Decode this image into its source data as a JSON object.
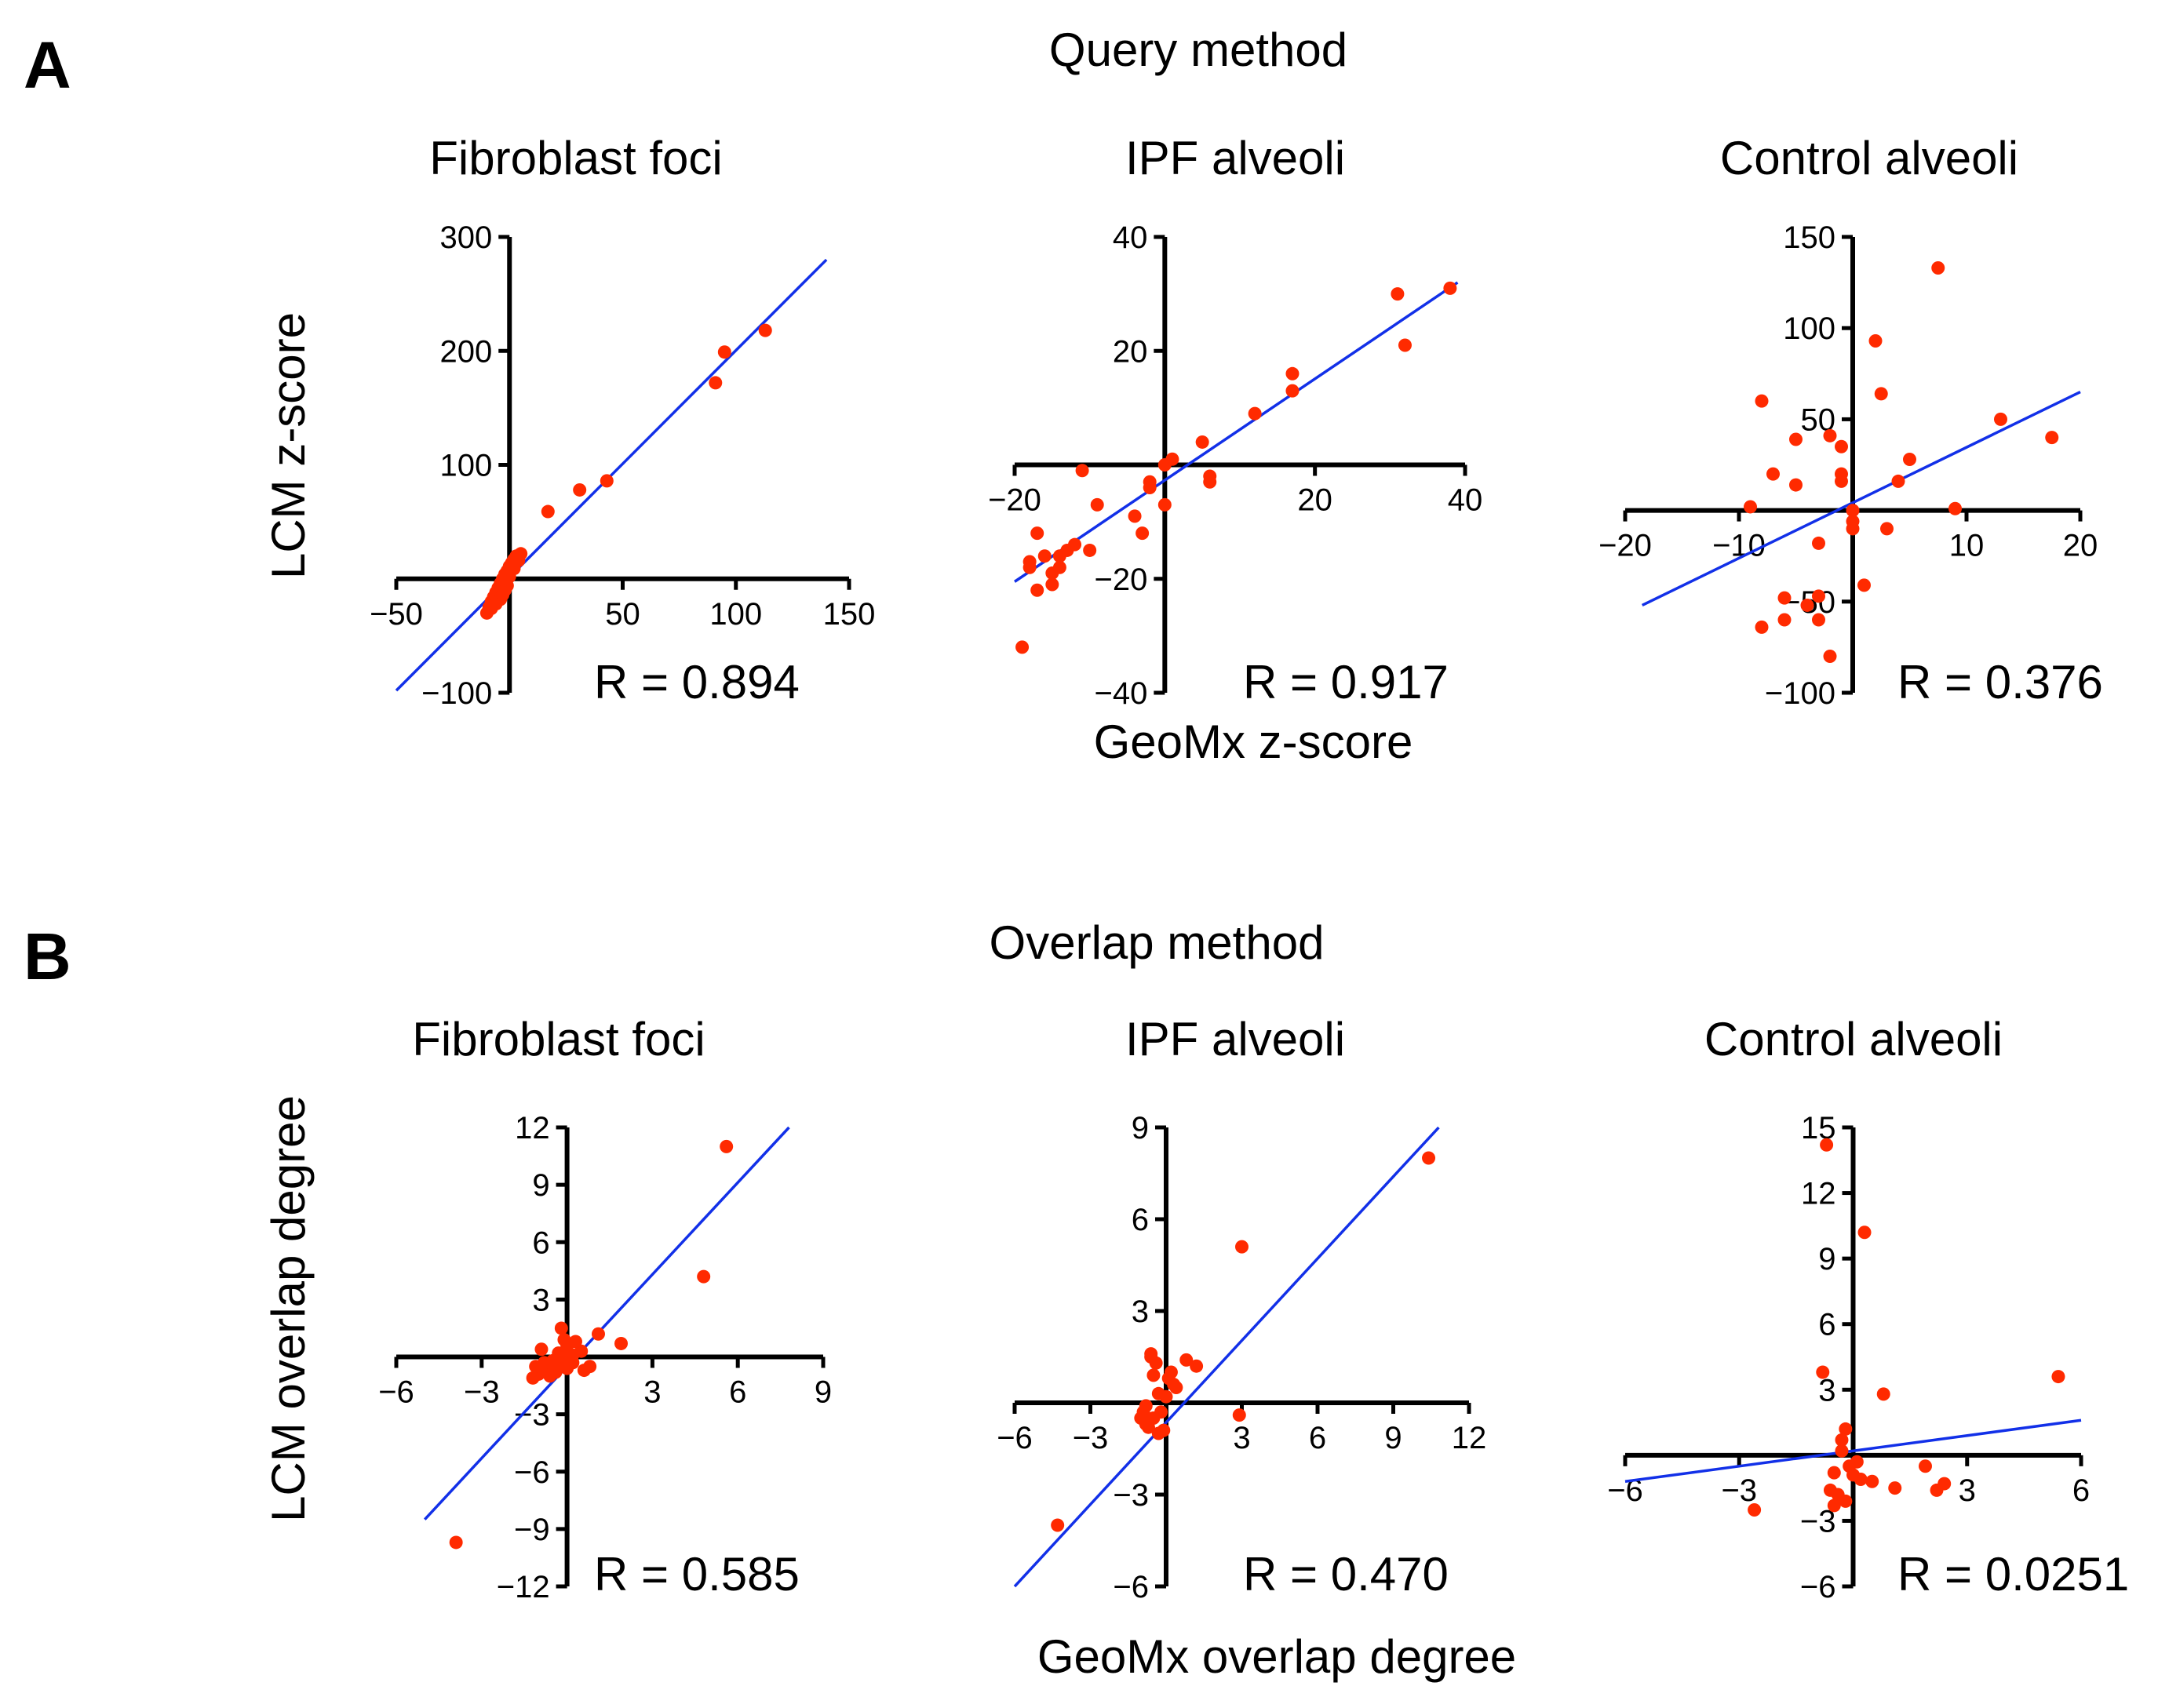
{
  "colors": {
    "points": "#ff2a00",
    "fit_line": "#1230e8",
    "axes": "#000000"
  },
  "figure": {
    "panel_a_letter": "A",
    "panel_b_letter": "B",
    "panel_a_heading": "Query method",
    "panel_b_heading": "Overlap method",
    "row_a_ylabel": "LCM z-score",
    "row_a_xlabel": "GeoMx z-score",
    "row_b_ylabel": "LCM overlap degree",
    "row_b_xlabel": "GeoMx overlap degree"
  },
  "chart_data": [
    {
      "type": "scatter",
      "panel": "A",
      "title": "Fibroblast foci",
      "r_label": "R = 0.894",
      "xlim": [
        -50,
        150
      ],
      "ylim": [
        -100,
        300
      ],
      "xticks": [
        -50,
        50,
        100,
        150
      ],
      "yticks": [
        -100,
        100,
        200,
        300
      ],
      "xtick_labels": [
        "−50",
        "50",
        "100",
        "150"
      ],
      "ytick_labels": [
        "−100",
        "100",
        "200",
        "300"
      ],
      "fit": [
        [
          -50,
          -98
        ],
        [
          140,
          280
        ]
      ],
      "x": [
        113,
        95,
        91,
        43,
        31,
        17,
        5,
        3,
        2,
        1,
        0,
        -1,
        -2,
        -3,
        -4,
        -5,
        -6,
        -7,
        -8,
        -9,
        -10,
        -2,
        -4,
        -6,
        -8,
        -3,
        -1,
        0,
        2,
        4
      ],
      "y": [
        218,
        199,
        172,
        86,
        78,
        59,
        22,
        20,
        17,
        14,
        11,
        7,
        4,
        0,
        -4,
        -8,
        -12,
        -16,
        -20,
        -25,
        -30,
        -10,
        -18,
        -22,
        -26,
        -14,
        -6,
        2,
        9,
        16
      ]
    },
    {
      "type": "scatter",
      "panel": "A",
      "title": "IPF alveoli",
      "r_label": "R = 0.917",
      "xlim": [
        -20,
        40
      ],
      "ylim": [
        -40,
        40
      ],
      "xticks": [
        -20,
        20,
        40
      ],
      "yticks": [
        -40,
        -20,
        20,
        40
      ],
      "xtick_labels": [
        "−20",
        "20",
        "40"
      ],
      "ytick_labels": [
        "−40",
        "−20",
        "20",
        "40"
      ],
      "fit": [
        [
          -20,
          -20.5
        ],
        [
          39,
          32
        ]
      ],
      "x": [
        38,
        31,
        32,
        17,
        17,
        12,
        5,
        6,
        6,
        1,
        0,
        0,
        -2,
        -2,
        -3,
        -4,
        -9,
        -10,
        -11,
        -12,
        -13,
        -14,
        -14,
        -15,
        -15,
        -16,
        -17,
        -17,
        -18,
        -18,
        -19
      ],
      "y": [
        31,
        30,
        21,
        16,
        13,
        9,
        4,
        -2,
        -3,
        1,
        -7,
        0,
        -3,
        -4,
        -12,
        -9,
        -7,
        -15,
        -1,
        -14,
        -15,
        -16,
        -18,
        -21,
        -19,
        -16,
        -22,
        -12,
        -17,
        -18,
        -32
      ]
    },
    {
      "type": "scatter",
      "panel": "A",
      "title": "Control alveoli",
      "r_label": "R = 0.376",
      "xlim": [
        -20,
        20
      ],
      "ylim": [
        -100,
        150
      ],
      "xticks": [
        -20,
        -10,
        10,
        20
      ],
      "yticks": [
        -100,
        -50,
        50,
        100,
        150
      ],
      "xtick_labels": [
        "−20",
        "−10",
        "10",
        "20"
      ],
      "ytick_labels": [
        "−100",
        "−50",
        "50",
        "100",
        "150"
      ],
      "fit": [
        [
          -18.5,
          -52
        ],
        [
          20,
          65
        ]
      ],
      "x": [
        7.5,
        17.5,
        13,
        2.5,
        5,
        4,
        3,
        2,
        9,
        1,
        0,
        0,
        0,
        -1,
        -1,
        -1,
        -2,
        -2,
        -3,
        -3,
        -3,
        -4,
        -5,
        -5,
        -6,
        -6,
        -7,
        -8,
        -8,
        -9
      ],
      "y": [
        133,
        40,
        50,
        64,
        28,
        16,
        -10,
        93,
        1,
        -41,
        -6,
        -10,
        0,
        16,
        35,
        20,
        41,
        -80,
        -18,
        -60,
        -47,
        -52,
        39,
        14,
        -60,
        -48,
        20,
        60,
        -64,
        2
      ]
    },
    {
      "type": "scatter",
      "panel": "B",
      "title": "Fibroblast foci",
      "r_label": "R = 0.585",
      "xlim": [
        -6,
        9
      ],
      "ylim": [
        -12,
        12
      ],
      "xticks": [
        -6,
        -3,
        3,
        6,
        9
      ],
      "yticks": [
        -12,
        -9,
        -6,
        -3,
        3,
        6,
        9,
        12
      ],
      "xtick_labels": [
        "−6",
        "−3",
        "3",
        "6",
        "9"
      ],
      "ytick_labels": [
        "−12",
        "−9",
        "−6",
        "−3",
        "3",
        "6",
        "9",
        "12"
      ],
      "fit": [
        [
          -5,
          -8.5
        ],
        [
          7.8,
          12
        ]
      ],
      "x": [
        5.6,
        4.8,
        1.9,
        1.1,
        0.5,
        0.3,
        0.2,
        0.1,
        0,
        0,
        -0.1,
        -0.2,
        -0.3,
        -0.4,
        -0.5,
        -0.6,
        -0.7,
        -0.8,
        -0.9,
        -1,
        -1.1,
        -1.2,
        -0.3,
        0.6,
        0.8,
        -0.5,
        -0.1,
        0.2,
        -3.9
      ],
      "y": [
        11,
        4.2,
        0.7,
        1.2,
        0.3,
        0.8,
        -0.3,
        0.1,
        0.6,
        -0.6,
        0.9,
        1.5,
        -0.2,
        -0.8,
        -0.4,
        -1,
        -0.6,
        -0.3,
        0.4,
        -0.9,
        -0.5,
        -1.1,
        0.2,
        -0.7,
        -0.5,
        -0.2,
        -0.4,
        0.1,
        -9.7
      ]
    },
    {
      "type": "scatter",
      "panel": "B",
      "title": "IPF alveoli",
      "r_label": "R = 0.470",
      "xlim": [
        -6,
        12
      ],
      "ylim": [
        -6,
        9
      ],
      "xticks": [
        -6,
        -3,
        3,
        6,
        9,
        12
      ],
      "yticks": [
        -6,
        -3,
        3,
        6,
        9
      ],
      "xtick_labels": [
        "−6",
        "−3",
        "3",
        "6",
        "9",
        "12"
      ],
      "ytick_labels": [
        "−6",
        "−3",
        "3",
        "6",
        "9"
      ],
      "fit": [
        [
          -6,
          -6
        ],
        [
          10.8,
          9
        ]
      ],
      "x": [
        10.4,
        3,
        1.2,
        0.8,
        0.3,
        0,
        -0.2,
        -0.3,
        -0.4,
        -0.5,
        -0.6,
        -0.7,
        -0.8,
        -0.9,
        -1,
        0.1,
        0.2,
        -0.1,
        -0.3,
        2.9,
        -4.3,
        -0.5,
        -0.8,
        -0.6,
        0.4
      ],
      "y": [
        8,
        5.1,
        1.2,
        1.4,
        0.6,
        0.2,
        -0.3,
        0.3,
        1.3,
        -0.5,
        1.5,
        -0.8,
        -0.1,
        -0.3,
        -0.5,
        0.8,
        1,
        -0.9,
        -1,
        -0.4,
        -4,
        0.9,
        -0.7,
        1.6,
        0.5
      ]
    },
    {
      "type": "scatter",
      "panel": "B",
      "title": "Control alveoli",
      "r_label": "R = 0.0251",
      "xlim": [
        -6,
        6
      ],
      "ylim": [
        -6,
        15
      ],
      "xticks": [
        -6,
        -3,
        3,
        6
      ],
      "yticks": [
        -6,
        -3,
        3,
        6,
        9,
        12,
        15
      ],
      "xtick_labels": [
        "−6",
        "−3",
        "3",
        "6"
      ],
      "ytick_labels": [
        "−6",
        "−3",
        "3",
        "6",
        "9",
        "12",
        "15"
      ],
      "fit": [
        [
          -6,
          -1.2
        ],
        [
          6,
          1.6
        ]
      ],
      "x": [
        -0.7,
        0.3,
        -0.8,
        0.8,
        5.4,
        2.4,
        2.2,
        1.9,
        1.1,
        0.5,
        0,
        -0.1,
        -0.2,
        -0.3,
        -0.4,
        -0.5,
        -0.6,
        0.1,
        0.2,
        -0.2,
        -0.5,
        -0.3,
        -2.6
      ],
      "y": [
        14.2,
        10.2,
        3.8,
        2.8,
        3.6,
        -1.3,
        -1.6,
        -0.5,
        -1.5,
        -1.2,
        -0.9,
        -0.5,
        1.2,
        0.7,
        -1.8,
        -2.3,
        -1.6,
        -0.3,
        -1.1,
        -2.1,
        -0.8,
        0.2,
        -2.5
      ]
    }
  ]
}
